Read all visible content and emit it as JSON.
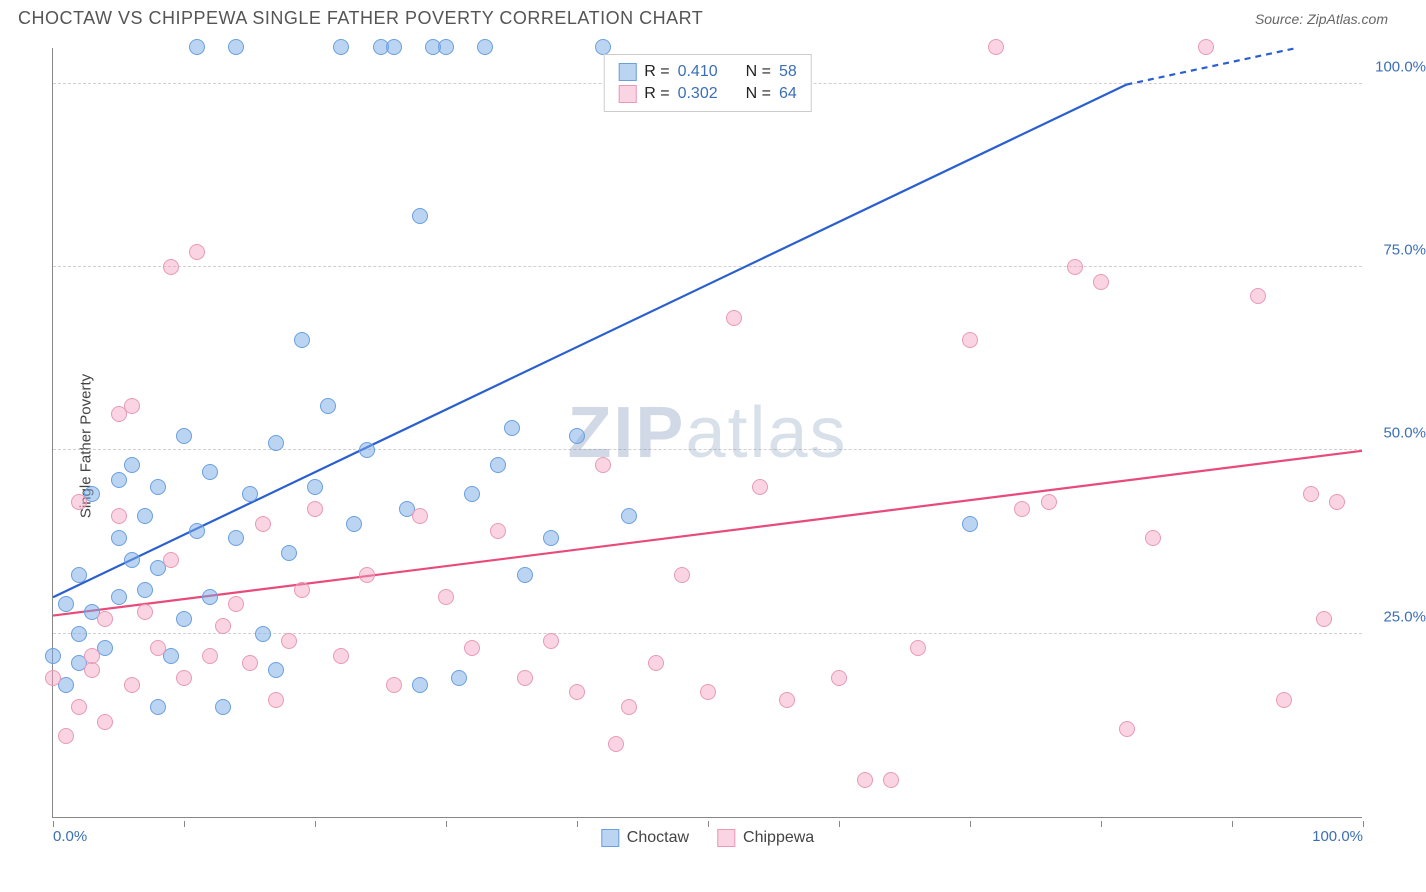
{
  "title": "CHOCTAW VS CHIPPEWA SINGLE FATHER POVERTY CORRELATION CHART",
  "source": "Source: ZipAtlas.com",
  "ylabel": "Single Father Poverty",
  "watermark_bold": "ZIP",
  "watermark_rest": "atlas",
  "chart": {
    "type": "scatter",
    "xlim": [
      0,
      100
    ],
    "ylim": [
      0,
      105
    ],
    "grid_color": "#d0d0d0",
    "background_color": "#ffffff",
    "axis_color": "#888888",
    "tick_label_color": "#3b6fb6",
    "ytick_labels": [
      {
        "v": 25,
        "label": "25.0%"
      },
      {
        "v": 50,
        "label": "50.0%"
      },
      {
        "v": 75,
        "label": "75.0%"
      },
      {
        "v": 100,
        "label": "100.0%"
      }
    ],
    "xtick_marks": [
      0,
      10,
      20,
      30,
      40,
      50,
      60,
      70,
      80,
      90,
      100
    ],
    "xtick_labels": [
      {
        "v": 0,
        "label": "0.0%",
        "align": "left"
      },
      {
        "v": 100,
        "label": "100.0%",
        "align": "right"
      }
    ],
    "marker_radius": 8,
    "marker_opacity": 0.55,
    "line_width": 2.2,
    "series": [
      {
        "name": "Choctaw",
        "color_line": "#2a5fd0",
        "color_fill": "rgba(120,170,230,0.5)",
        "color_stroke": "#6a9fe0",
        "R": "0.410",
        "N": "58",
        "trend": {
          "x1": 0,
          "y1": 30,
          "x2": 82,
          "y2": 100,
          "x2_dash": 95,
          "y2_dash": 105
        },
        "points": [
          [
            0,
            22
          ],
          [
            1,
            18
          ],
          [
            1,
            29
          ],
          [
            2,
            25
          ],
          [
            2,
            21
          ],
          [
            2,
            33
          ],
          [
            3,
            28
          ],
          [
            3,
            44
          ],
          [
            4,
            23
          ],
          [
            5,
            30
          ],
          [
            5,
            38
          ],
          [
            5,
            46
          ],
          [
            6,
            35
          ],
          [
            6,
            48
          ],
          [
            7,
            31
          ],
          [
            7,
            41
          ],
          [
            8,
            34
          ],
          [
            8,
            45
          ],
          [
            9,
            22
          ],
          [
            10,
            52
          ],
          [
            10,
            27
          ],
          [
            11,
            39
          ],
          [
            11,
            105
          ],
          [
            12,
            47
          ],
          [
            12,
            30
          ],
          [
            13,
            15
          ],
          [
            14,
            105
          ],
          [
            14,
            38
          ],
          [
            15,
            44
          ],
          [
            16,
            25
          ],
          [
            17,
            51
          ],
          [
            17,
            20
          ],
          [
            18,
            36
          ],
          [
            19,
            65
          ],
          [
            20,
            45
          ],
          [
            21,
            56
          ],
          [
            22,
            105
          ],
          [
            23,
            40
          ],
          [
            24,
            50
          ],
          [
            25,
            105
          ],
          [
            26,
            105
          ],
          [
            27,
            42
          ],
          [
            28,
            18
          ],
          [
            28,
            82
          ],
          [
            29,
            105
          ],
          [
            30,
            105
          ],
          [
            31,
            19
          ],
          [
            32,
            44
          ],
          [
            33,
            105
          ],
          [
            34,
            48
          ],
          [
            35,
            53
          ],
          [
            36,
            33
          ],
          [
            38,
            38
          ],
          [
            40,
            52
          ],
          [
            42,
            105
          ],
          [
            44,
            41
          ],
          [
            70,
            40
          ],
          [
            8,
            15
          ]
        ]
      },
      {
        "name": "Chippewa",
        "color_line": "#e84a7a",
        "color_fill": "rgba(245,160,190,0.45)",
        "color_stroke": "#e89ab5",
        "R": "0.302",
        "N": "64",
        "trend": {
          "x1": 0,
          "y1": 27.5,
          "x2": 100,
          "y2": 50
        },
        "points": [
          [
            0,
            19
          ],
          [
            1,
            11
          ],
          [
            2,
            15
          ],
          [
            2,
            43
          ],
          [
            3,
            20
          ],
          [
            3,
            22
          ],
          [
            4,
            27
          ],
          [
            4,
            13
          ],
          [
            5,
            55
          ],
          [
            5,
            41
          ],
          [
            6,
            18
          ],
          [
            6,
            56
          ],
          [
            7,
            28
          ],
          [
            8,
            23
          ],
          [
            9,
            75
          ],
          [
            9,
            35
          ],
          [
            10,
            19
          ],
          [
            11,
            77
          ],
          [
            12,
            22
          ],
          [
            13,
            26
          ],
          [
            14,
            29
          ],
          [
            15,
            21
          ],
          [
            16,
            40
          ],
          [
            17,
            16
          ],
          [
            18,
            24
          ],
          [
            19,
            31
          ],
          [
            20,
            42
          ],
          [
            22,
            22
          ],
          [
            24,
            33
          ],
          [
            26,
            18
          ],
          [
            28,
            41
          ],
          [
            30,
            30
          ],
          [
            32,
            23
          ],
          [
            34,
            39
          ],
          [
            36,
            19
          ],
          [
            38,
            24
          ],
          [
            40,
            17
          ],
          [
            42,
            48
          ],
          [
            43,
            10
          ],
          [
            44,
            15
          ],
          [
            46,
            21
          ],
          [
            48,
            33
          ],
          [
            50,
            17
          ],
          [
            52,
            68
          ],
          [
            54,
            45
          ],
          [
            56,
            16
          ],
          [
            60,
            19
          ],
          [
            62,
            5
          ],
          [
            64,
            5
          ],
          [
            66,
            23
          ],
          [
            70,
            65
          ],
          [
            72,
            105
          ],
          [
            74,
            42
          ],
          [
            76,
            43
          ],
          [
            78,
            75
          ],
          [
            80,
            73
          ],
          [
            82,
            12
          ],
          [
            84,
            38
          ],
          [
            88,
            105
          ],
          [
            92,
            71
          ],
          [
            94,
            16
          ],
          [
            96,
            44
          ],
          [
            97,
            27
          ],
          [
            98,
            43
          ]
        ]
      }
    ],
    "legend_top": {
      "r_label": "R =",
      "n_label": "N ="
    },
    "legend_bottom": [
      {
        "label": "Choctaw",
        "series": 0
      },
      {
        "label": "Chippewa",
        "series": 1
      }
    ]
  }
}
